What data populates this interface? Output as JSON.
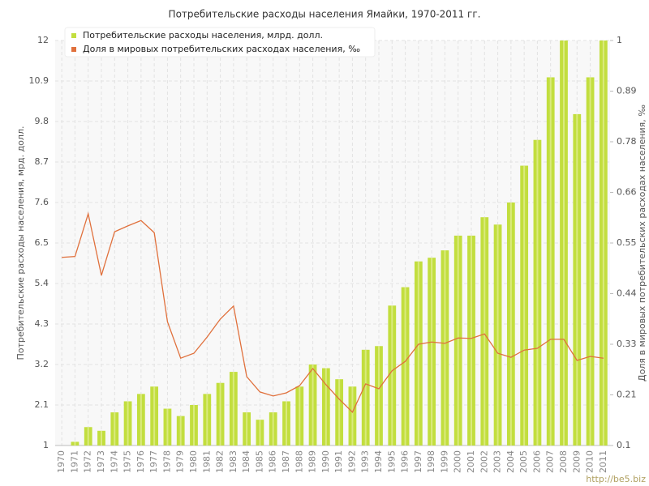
{
  "chart_data": {
    "type": "bar",
    "title": "Потребительские расходы населения Ямайки, 1970-2011 гг.",
    "y_label": "Потребительские расходы населения, мрд. долл.",
    "y2_label": "Доля в мировых потребительских расходах населения, ‰",
    "watermark": "http://be5.biz",
    "categories": [
      "1970",
      "1971",
      "1972",
      "1973",
      "1974",
      "1975",
      "1976",
      "1977",
      "1978",
      "1979",
      "1980",
      "1981",
      "1982",
      "1983",
      "1984",
      "1985",
      "1986",
      "1987",
      "1988",
      "1989",
      "1990",
      "1991",
      "1992",
      "1993",
      "1994",
      "1995",
      "1996",
      "1997",
      "1998",
      "1999",
      "2000",
      "2001",
      "2002",
      "2003",
      "2004",
      "2005",
      "2006",
      "2007",
      "2008",
      "2009",
      "2010",
      "2011"
    ],
    "series": [
      {
        "name": "Потребительские расходы населения, млрд. долл.",
        "type": "bar",
        "color": "#c2de3e",
        "values": [
          1.0,
          1.1,
          1.5,
          1.4,
          1.9,
          2.2,
          2.4,
          2.6,
          2.0,
          1.8,
          2.1,
          2.4,
          2.7,
          3.0,
          1.9,
          1.7,
          1.9,
          2.2,
          2.6,
          3.2,
          3.1,
          2.8,
          2.6,
          3.6,
          3.7,
          4.8,
          5.3,
          6.0,
          6.1,
          6.3,
          6.7,
          6.7,
          7.2,
          7.0,
          7.6,
          8.6,
          9.3,
          11.0,
          12.0,
          10.0,
          11.0,
          12.0
        ]
      },
      {
        "name": "Доля в мировых потребительских расходах населения, ‰",
        "type": "line",
        "axis": "y2",
        "color": "#e0703c",
        "values": [
          0.518,
          0.52,
          0.615,
          0.478,
          0.575,
          0.588,
          0.6,
          0.573,
          0.375,
          0.294,
          0.305,
          0.341,
          0.381,
          0.41,
          0.253,
          0.219,
          0.21,
          0.217,
          0.233,
          0.271,
          0.235,
          0.203,
          0.174,
          0.237,
          0.226,
          0.266,
          0.287,
          0.325,
          0.33,
          0.327,
          0.339,
          0.338,
          0.348,
          0.305,
          0.296,
          0.312,
          0.316,
          0.336,
          0.336,
          0.289,
          0.298,
          0.294
        ]
      }
    ],
    "ylim": [
      1,
      12
    ],
    "yticks": [
      1,
      2.1,
      3.2,
      4.3,
      5.4,
      6.5,
      7.6,
      8.7,
      9.8,
      10.9,
      12
    ],
    "y2lim": [
      0.1,
      1
    ],
    "y2ticks": [
      0.1,
      {
        "value": 0.2125,
        "label": "0.21"
      },
      {
        "value": 0.325,
        "label": "0.33"
      },
      {
        "value": 0.4375,
        "label": "0.44"
      },
      0.55,
      {
        "value": 0.6625,
        "label": "0.66"
      },
      {
        "value": 0.775,
        "label": "0.78"
      },
      {
        "value": 0.8875,
        "label": "0.89"
      },
      1
    ],
    "grid": true,
    "legend": "top-left"
  }
}
